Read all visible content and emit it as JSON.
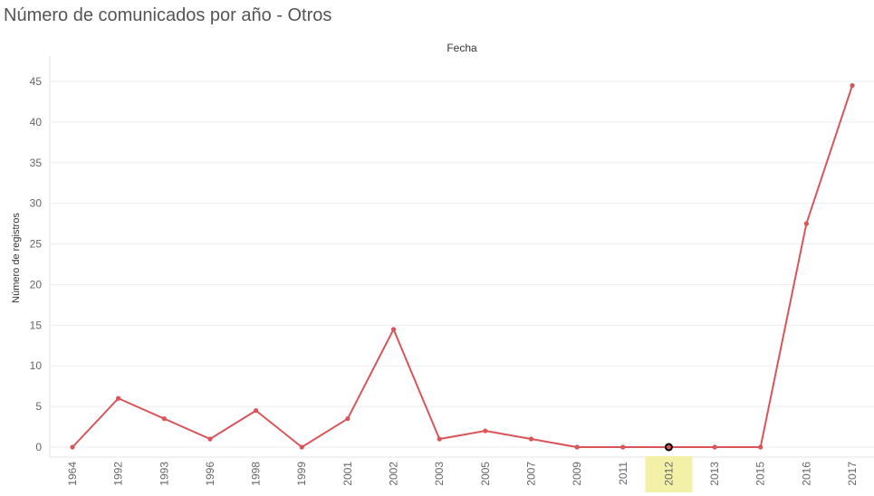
{
  "chart_data": {
    "type": "line",
    "title": "Número de comunicados por año - Otros",
    "column_header": "Fecha",
    "ylabel": "Número de registros",
    "categories": [
      "1964",
      "1992",
      "1993",
      "1996",
      "1998",
      "1999",
      "2001",
      "2002",
      "2003",
      "2005",
      "2007",
      "2009",
      "2011",
      "2012",
      "2013",
      "2015",
      "2016",
      "2017"
    ],
    "series": [
      {
        "values": [
          0,
          6,
          3.5,
          1,
          4.5,
          0,
          3.5,
          14.5,
          1,
          2,
          1,
          0,
          0,
          0,
          0,
          0,
          27.5,
          44.5
        ]
      }
    ],
    "yticks": [
      0,
      5,
      10,
      15,
      20,
      25,
      30,
      35,
      40,
      45
    ],
    "ylim": [
      0,
      45
    ],
    "grid": true,
    "highlighted_category": "2012",
    "colors": {
      "line": "#d9555a",
      "highlight_band": "#f3f1a8",
      "marker_selected": "#000000"
    }
  }
}
